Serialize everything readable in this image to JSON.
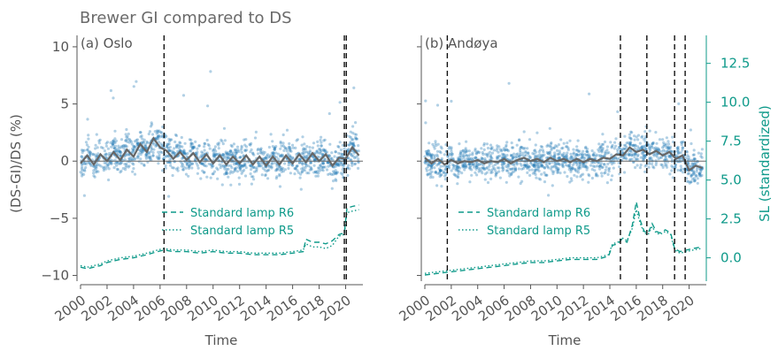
{
  "figure": {
    "title": "Brewer GI compared to DS"
  },
  "colors": {
    "points": "#1f77b4",
    "grey_line": "#666666",
    "teal": "#0f9a8a",
    "text": "#555555"
  },
  "chart_data": [
    {
      "type": "scatter",
      "panel_label": "(a) Oslo",
      "xlabel": "Time",
      "ylabel": "(DS-GI)/DS (%)",
      "xlim": [
        2000,
        2021.3
      ],
      "ylim": [
        -10.5,
        11
      ],
      "x_ticks": [
        2000,
        2002,
        2004,
        2006,
        2008,
        2010,
        2012,
        2014,
        2016,
        2018,
        2020
      ],
      "y_ticks": [
        -10,
        -5,
        0,
        5,
        10
      ],
      "y_tick_labels": [
        "−10",
        "−5",
        "0",
        "5",
        "10"
      ],
      "secondary_ylim": [
        -1.5,
        14.3
      ],
      "vlines": [
        2006.3,
        2019.9,
        2020.05
      ],
      "series": [
        {
          "name": "Standard lamp R6",
          "style": "dashed",
          "x": [
            2000.0,
            2000.5,
            2001.0,
            2001.5,
            2002.0,
            2003.0,
            2004.0,
            2005.0,
            2005.8,
            2006.3,
            2007.0,
            2008.0,
            2009.0,
            2010.0,
            2011.0,
            2012.0,
            2013.0,
            2014.0,
            2015.0,
            2016.0,
            2016.8,
            2017.0,
            2017.5,
            2018.0,
            2018.5,
            2019.0,
            2019.5,
            2019.9,
            2020.1,
            2020.5,
            2021.0
          ],
          "y": [
            -0.6,
            -0.7,
            -0.6,
            -0.5,
            -0.3,
            -0.1,
            0.0,
            0.2,
            0.4,
            0.5,
            0.4,
            0.4,
            0.3,
            0.4,
            0.3,
            0.3,
            0.2,
            0.2,
            0.2,
            0.3,
            0.4,
            1.2,
            1.0,
            1.0,
            0.9,
            1.1,
            1.5,
            1.6,
            3.2,
            3.3,
            3.4
          ]
        },
        {
          "name": "Standard lamp R5",
          "style": "dotted",
          "x": [
            2000.0,
            2000.5,
            2001.0,
            2001.5,
            2002.0,
            2003.0,
            2004.0,
            2005.0,
            2005.8,
            2006.3,
            2007.0,
            2008.0,
            2009.0,
            2010.0,
            2011.0,
            2012.0,
            2013.0,
            2014.0,
            2015.0,
            2016.0,
            2016.8,
            2017.0,
            2017.5,
            2018.0,
            2018.5,
            2019.0,
            2019.5,
            2019.9,
            2020.1,
            2020.5,
            2021.0
          ],
          "y": [
            -0.5,
            -0.6,
            -0.5,
            -0.4,
            -0.2,
            0.0,
            0.1,
            0.3,
            0.5,
            0.6,
            0.5,
            0.5,
            0.4,
            0.5,
            0.4,
            0.4,
            0.3,
            0.3,
            0.3,
            0.4,
            0.5,
            0.9,
            0.7,
            0.7,
            0.6,
            0.8,
            1.4,
            1.5,
            2.9,
            3.0,
            3.1
          ]
        }
      ],
      "monthly_mean": {
        "x": [
          2000.0,
          2000.5,
          2001.0,
          2001.5,
          2002.0,
          2002.5,
          2003.0,
          2003.5,
          2004.0,
          2004.5,
          2005.0,
          2005.5,
          2006.0,
          2006.5,
          2007.0,
          2007.5,
          2008.0,
          2008.5,
          2009.0,
          2009.5,
          2010.0,
          2010.5,
          2011.0,
          2011.5,
          2012.0,
          2012.5,
          2013.0,
          2013.5,
          2014.0,
          2014.5,
          2015.0,
          2015.5,
          2016.0,
          2016.5,
          2017.0,
          2017.5,
          2018.0,
          2018.5,
          2019.0,
          2019.5,
          2020.0,
          2020.5,
          2021.0
        ],
        "y": [
          -0.2,
          0.5,
          -0.3,
          0.6,
          0.0,
          0.8,
          0.1,
          1.0,
          0.4,
          1.5,
          0.8,
          2.0,
          1.2,
          0.9,
          0.2,
          0.8,
          0.1,
          0.7,
          -0.1,
          0.6,
          -0.2,
          0.5,
          -0.3,
          0.4,
          -0.2,
          0.5,
          -0.3,
          0.4,
          -0.4,
          0.4,
          -0.3,
          0.5,
          -0.2,
          0.6,
          -0.1,
          0.7,
          0.0,
          0.6,
          -0.4,
          0.3,
          0.2,
          1.2,
          0.5
        ]
      }
    },
    {
      "type": "scatter",
      "panel_label": "(b) Andøya",
      "xlabel": "Time",
      "ylabel": "SL (standardized)",
      "xlim": [
        2000,
        2021.3
      ],
      "ylim": [
        -10.5,
        11
      ],
      "x_ticks": [
        2000,
        2002,
        2004,
        2006,
        2008,
        2010,
        2012,
        2014,
        2016,
        2018,
        2020
      ],
      "secondary_ylim": [
        -1.5,
        14.3
      ],
      "secondary_ticks": [
        0.0,
        2.5,
        5.0,
        7.5,
        10.0,
        12.5
      ],
      "secondary_tick_labels": [
        "0.0",
        "2.5",
        "5.0",
        "7.5",
        "10.0",
        "12.5"
      ],
      "vlines": [
        2001.7,
        2014.8,
        2016.8,
        2018.9,
        2019.7
      ],
      "series": [
        {
          "name": "Standard lamp R6",
          "style": "dashed",
          "x": [
            2000.0,
            2001.0,
            2002.0,
            2003.0,
            2004.0,
            2005.0,
            2006.0,
            2007.0,
            2008.0,
            2009.0,
            2010.0,
            2011.0,
            2012.0,
            2013.0,
            2013.9,
            2014.2,
            2014.6,
            2014.9,
            2015.3,
            2015.7,
            2016.0,
            2016.3,
            2016.6,
            2016.9,
            2017.2,
            2017.5,
            2017.8,
            2018.2,
            2018.6,
            2018.9,
            2019.3,
            2019.8,
            2020.3,
            2020.9
          ],
          "y": [
            -1.1,
            -1.0,
            -0.9,
            -0.8,
            -0.7,
            -0.6,
            -0.5,
            -0.4,
            -0.3,
            -0.3,
            -0.2,
            -0.1,
            -0.1,
            -0.1,
            0.1,
            0.8,
            0.9,
            1.2,
            1.0,
            2.1,
            3.6,
            2.4,
            1.7,
            1.6,
            2.2,
            1.7,
            1.6,
            1.8,
            1.6,
            0.6,
            0.4,
            0.5,
            0.6,
            0.7
          ]
        },
        {
          "name": "Standard lamp R5",
          "style": "dotted",
          "x": [
            2000.0,
            2001.0,
            2002.0,
            2003.0,
            2004.0,
            2005.0,
            2006.0,
            2007.0,
            2008.0,
            2009.0,
            2010.0,
            2011.0,
            2012.0,
            2013.0,
            2013.9,
            2014.2,
            2014.6,
            2014.9,
            2015.3,
            2015.7,
            2016.0,
            2016.3,
            2016.6,
            2016.9,
            2017.2,
            2017.5,
            2017.8,
            2018.2,
            2018.6,
            2018.9,
            2019.3,
            2019.8,
            2020.3,
            2020.9
          ],
          "y": [
            -1.0,
            -0.9,
            -0.8,
            -0.7,
            -0.6,
            -0.5,
            -0.4,
            -0.3,
            -0.2,
            -0.2,
            -0.1,
            0.0,
            0.0,
            0.0,
            0.2,
            0.9,
            1.0,
            1.3,
            1.1,
            1.9,
            3.1,
            2.2,
            1.6,
            1.5,
            2.0,
            1.6,
            1.5,
            1.7,
            1.5,
            0.5,
            0.3,
            0.4,
            0.5,
            0.6
          ]
        }
      ],
      "monthly_mean": {
        "x": [
          2000.0,
          2000.5,
          2001.0,
          2001.5,
          2002.0,
          2002.5,
          2003.0,
          2003.5,
          2004.0,
          2004.5,
          2005.0,
          2005.5,
          2006.0,
          2006.5,
          2007.0,
          2007.5,
          2008.0,
          2008.5,
          2009.0,
          2009.5,
          2010.0,
          2010.5,
          2011.0,
          2011.5,
          2012.0,
          2012.5,
          2013.0,
          2013.5,
          2014.0,
          2014.5,
          2015.0,
          2015.5,
          2016.0,
          2016.5,
          2017.0,
          2017.5,
          2018.0,
          2018.5,
          2019.0,
          2019.5,
          2020.0,
          2020.5,
          2021.0
        ],
        "y": [
          0.3,
          -0.2,
          0.2,
          -0.3,
          0.1,
          -0.2,
          0.0,
          -0.1,
          0.1,
          -0.2,
          0.0,
          -0.1,
          0.2,
          -0.2,
          0.1,
          0.3,
          0.0,
          0.2,
          -0.1,
          0.3,
          0.0,
          0.2,
          -0.1,
          0.2,
          -0.1,
          0.2,
          0.0,
          0.3,
          0.2,
          0.6,
          0.5,
          1.2,
          0.8,
          1.0,
          0.6,
          0.9,
          0.5,
          0.8,
          0.2,
          0.5,
          -0.8,
          -0.4,
          -0.6
        ]
      }
    }
  ]
}
